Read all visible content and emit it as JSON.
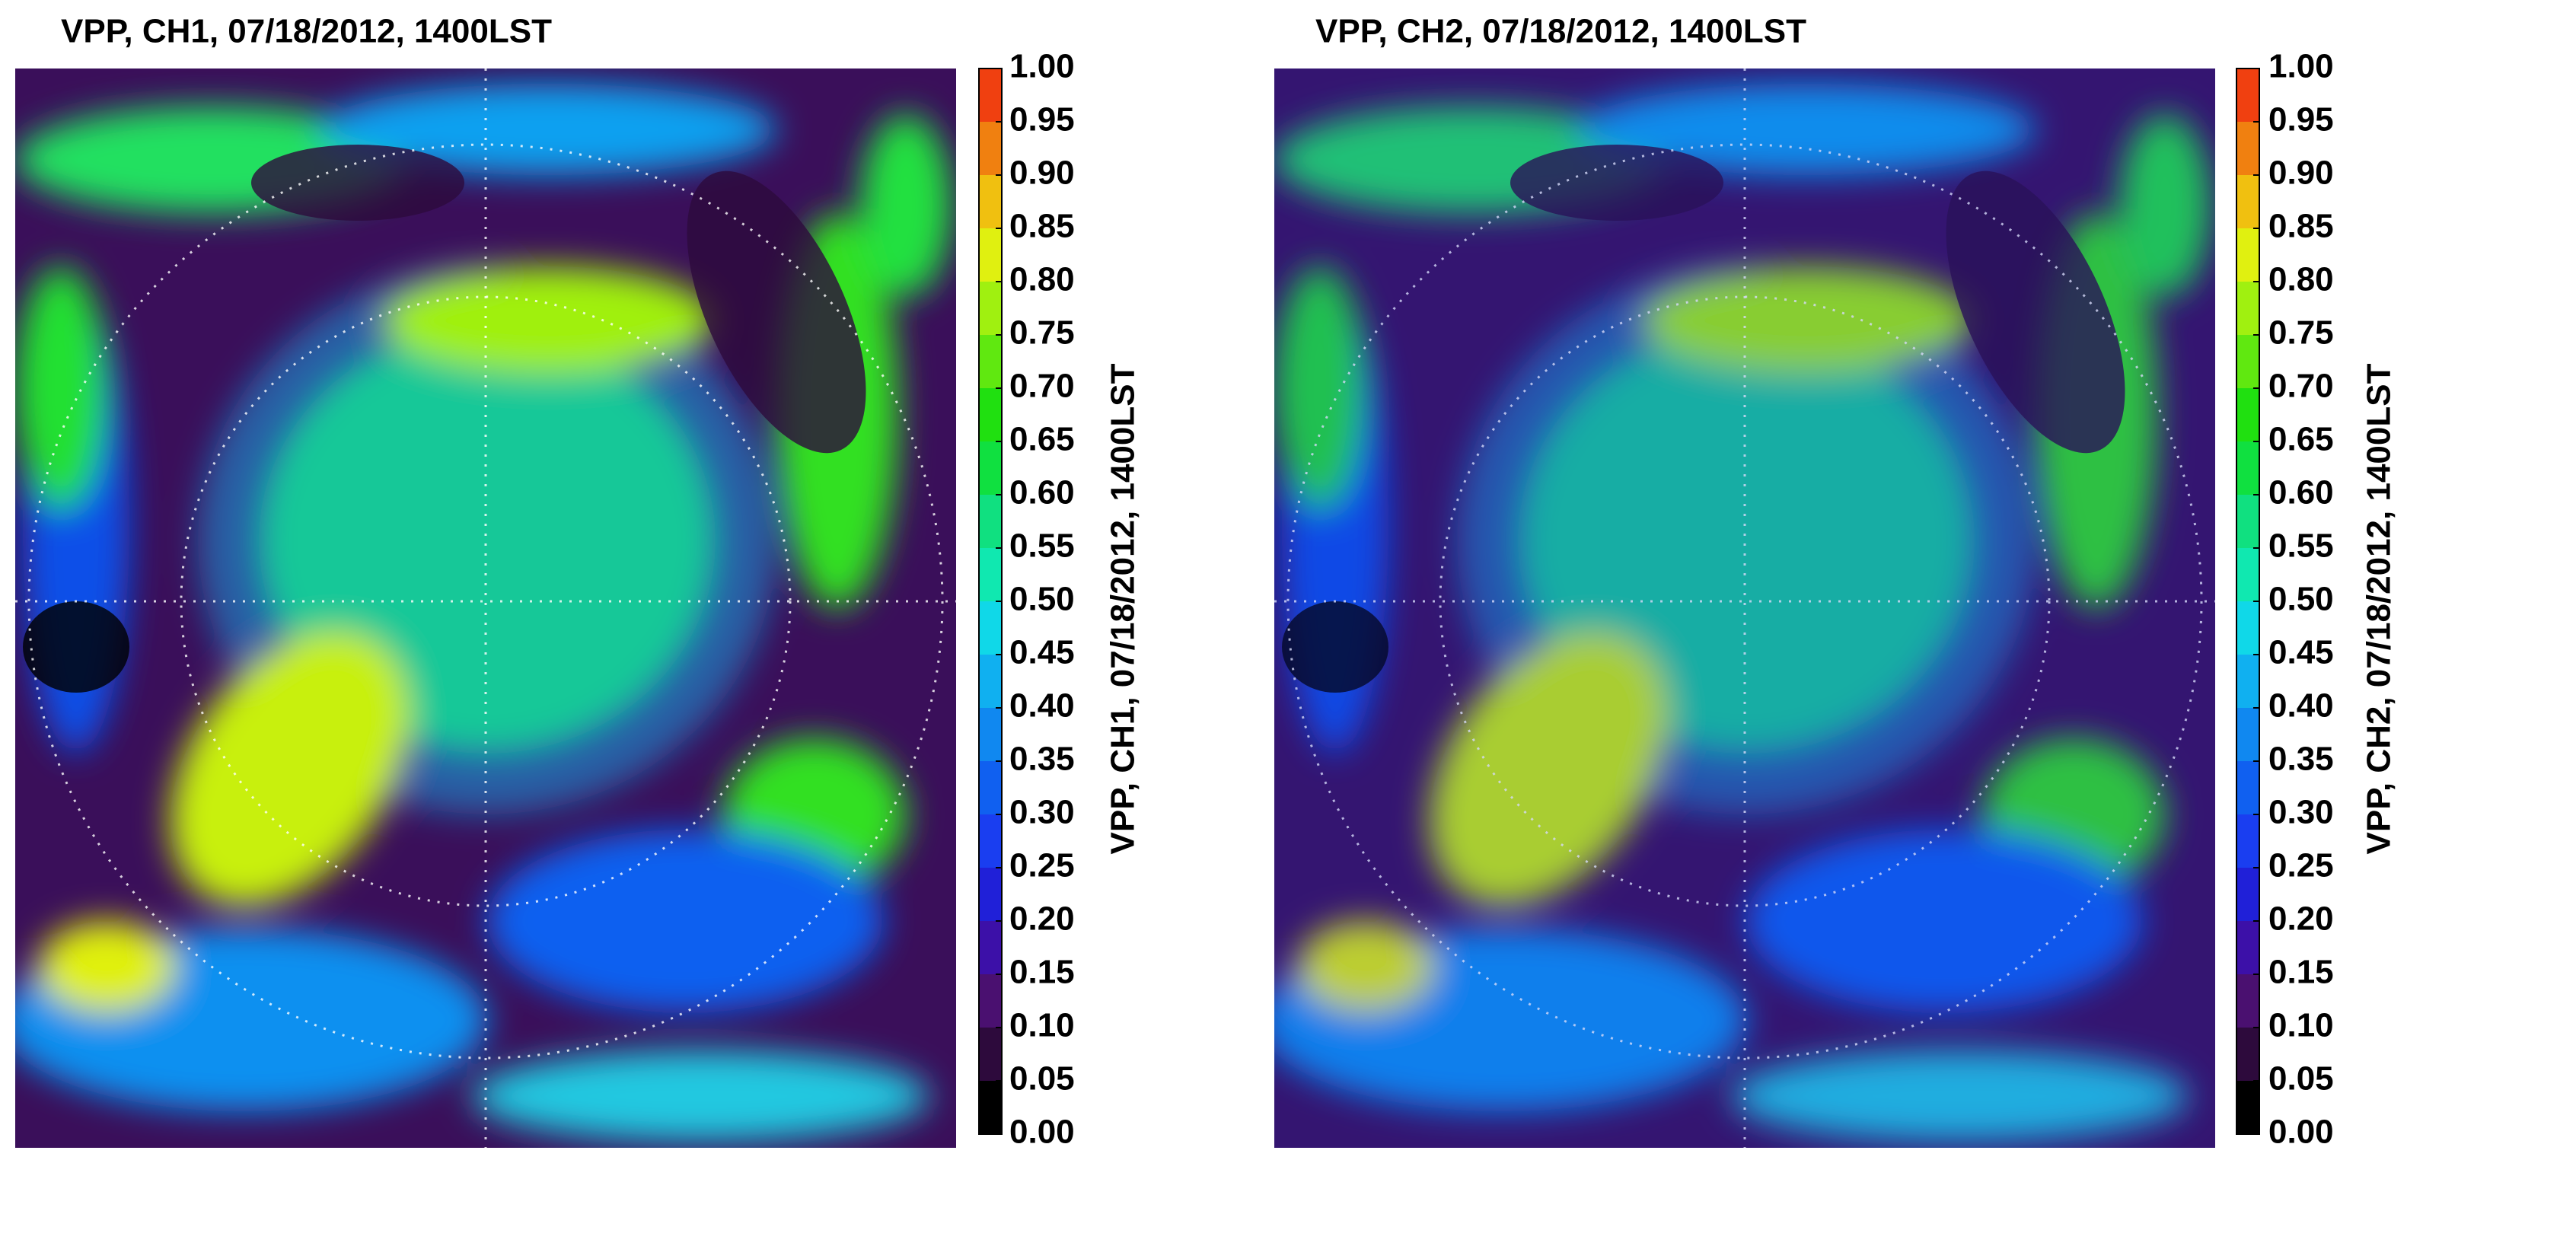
{
  "figure": {
    "panels": [
      {
        "title": "VPP, CH1, 07/18/2012, 1400LST",
        "colorbar": {
          "label": "VPP, CH1, 07/18/2012, 1400LST",
          "ticks": [
            {
              "value": 0,
              "label": "0.00"
            },
            {
              "value": 0.05,
              "label": "0.05"
            },
            {
              "value": 0.1,
              "label": "0.10"
            },
            {
              "value": 0.15,
              "label": "0.15"
            },
            {
              "value": 0.2,
              "label": "0.20"
            },
            {
              "value": 0.25,
              "label": "0.25"
            },
            {
              "value": 0.3,
              "label": "0.30"
            },
            {
              "value": 0.35,
              "label": "0.35"
            },
            {
              "value": 0.4,
              "label": "0.40"
            },
            {
              "value": 0.45,
              "label": "0.45"
            },
            {
              "value": 0.5,
              "label": "0.50"
            },
            {
              "value": 0.55,
              "label": "0.55"
            },
            {
              "value": 0.6,
              "label": "0.60"
            },
            {
              "value": 0.65,
              "label": "0.65"
            },
            {
              "value": 0.7,
              "label": "0.70"
            },
            {
              "value": 0.75,
              "label": "0.75"
            },
            {
              "value": 0.8,
              "label": "0.80"
            },
            {
              "value": 0.85,
              "label": "0.85"
            },
            {
              "value": 0.9,
              "label": "0.90"
            },
            {
              "value": 0.95,
              "label": "0.95"
            },
            {
              "value": 1,
              "label": "1.00"
            }
          ],
          "colors": [
            "#000000",
            "#2d0a3c",
            "#4a1070",
            "#3c10a8",
            "#2020d8",
            "#1a3ef0",
            "#1060f0",
            "#1088f0",
            "#10b0f0",
            "#10d8e8",
            "#10e8b0",
            "#10e080",
            "#10e040",
            "#20e010",
            "#60e810",
            "#a0f010",
            "#e0f010",
            "#f0c010",
            "#f08010",
            "#f04010"
          ]
        }
      },
      {
        "title": "VPP, CH2, 07/18/2012, 1400LST",
        "colorbar": {
          "label": "VPP, CH2, 07/18/2012, 1400LST",
          "ticks": [
            {
              "value": 0,
              "label": "0.00"
            },
            {
              "value": 0.05,
              "label": "0.05"
            },
            {
              "value": 0.1,
              "label": "0.10"
            },
            {
              "value": 0.15,
              "label": "0.15"
            },
            {
              "value": 0.2,
              "label": "0.20"
            },
            {
              "value": 0.25,
              "label": "0.25"
            },
            {
              "value": 0.3,
              "label": "0.30"
            },
            {
              "value": 0.35,
              "label": "0.35"
            },
            {
              "value": 0.4,
              "label": "0.40"
            },
            {
              "value": 0.45,
              "label": "0.45"
            },
            {
              "value": 0.5,
              "label": "0.50"
            },
            {
              "value": 0.55,
              "label": "0.55"
            },
            {
              "value": 0.6,
              "label": "0.60"
            },
            {
              "value": 0.65,
              "label": "0.65"
            },
            {
              "value": 0.7,
              "label": "0.70"
            },
            {
              "value": 0.75,
              "label": "0.75"
            },
            {
              "value": 0.8,
              "label": "0.80"
            },
            {
              "value": 0.85,
              "label": "0.85"
            },
            {
              "value": 0.9,
              "label": "0.90"
            },
            {
              "value": 0.95,
              "label": "0.95"
            },
            {
              "value": 1,
              "label": "1.00"
            }
          ],
          "colors": [
            "#000000",
            "#2d0a3c",
            "#4a1070",
            "#3c10a8",
            "#2020d8",
            "#1a3ef0",
            "#1060f0",
            "#1088f0",
            "#10b0f0",
            "#10d8e8",
            "#10e8b0",
            "#10e080",
            "#10e040",
            "#20e010",
            "#60e810",
            "#a0f010",
            "#e0f010",
            "#f0c010",
            "#f08010",
            "#f04010"
          ]
        }
      }
    ]
  }
}
